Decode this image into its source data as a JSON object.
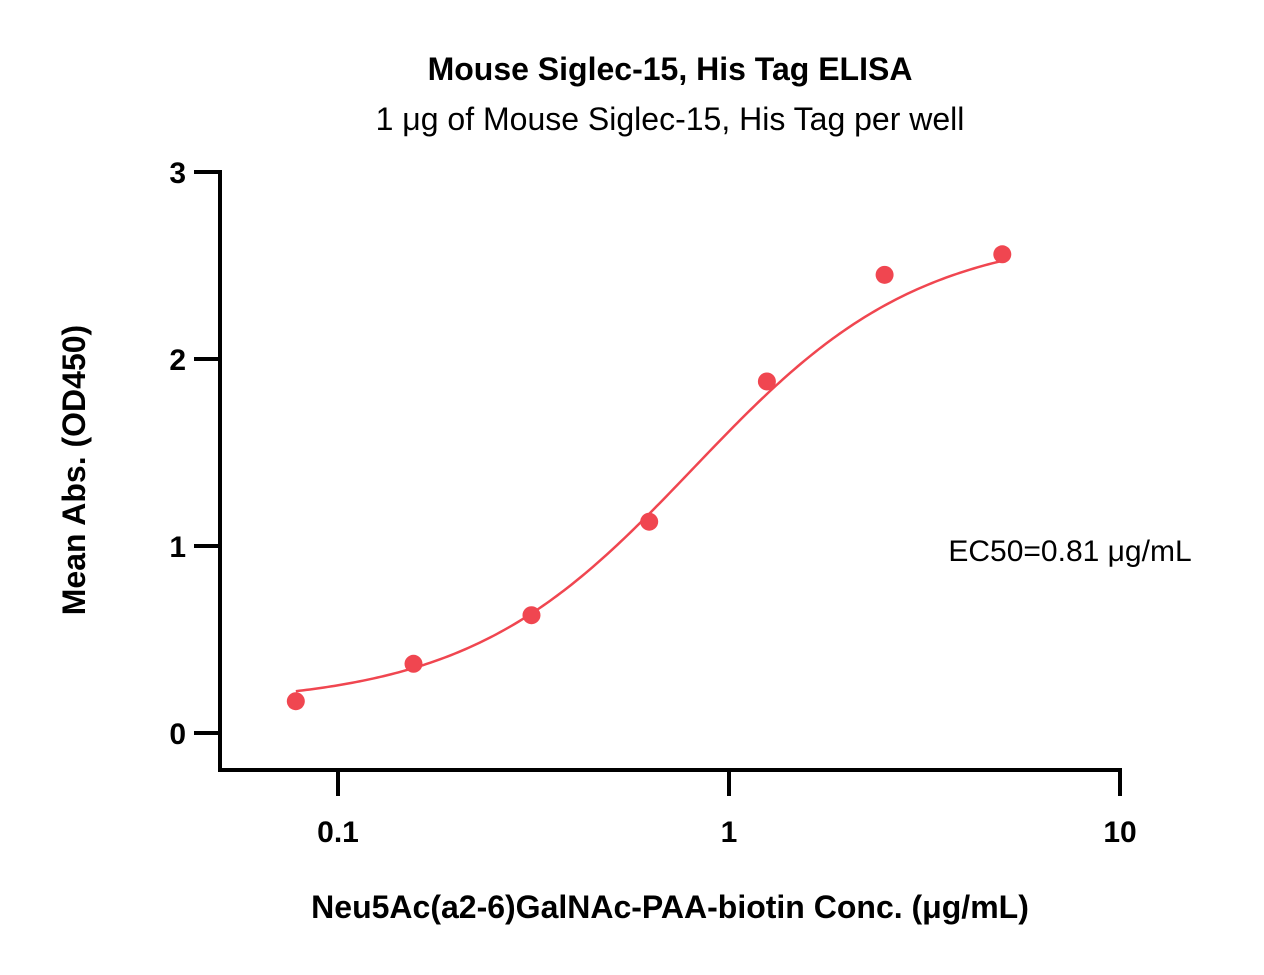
{
  "chart_data": {
    "type": "scatter",
    "title": "Mouse Siglec-15, His Tag ELISA",
    "subtitle": "1 μg of Mouse Siglec-15, His Tag per well",
    "xlabel": "Neu5Ac(a2-6)GalNAc-PAA-biotin Conc. (μg/mL)",
    "ylabel": "Mean Abs. (OD450)",
    "xscale": "log",
    "xlim": [
      0.05,
      10
    ],
    "ylim": [
      0,
      3
    ],
    "xticks": [
      0.1,
      1,
      10
    ],
    "xtick_labels": [
      "0.1",
      "1",
      "10"
    ],
    "yticks": [
      0,
      1,
      2,
      3
    ],
    "ytick_labels": [
      "0",
      "1",
      "2",
      "3"
    ],
    "grid": false,
    "legend": "none",
    "colors": {
      "series": "#f04650",
      "axis": "#000000"
    },
    "series": [
      {
        "x": [
          0.078,
          0.156,
          0.3125,
          0.625,
          1.25,
          2.5,
          5.0
        ],
        "y": [
          0.17,
          0.37,
          0.63,
          1.13,
          1.88,
          2.45,
          2.56
        ],
        "fit": "4PL",
        "fit_params": {
          "bottom": 0.15,
          "top": 2.68,
          "ec50": 0.81,
          "hill": 1.5
        }
      }
    ],
    "annotations": [
      "EC50=0.81 μg/mL"
    ]
  }
}
